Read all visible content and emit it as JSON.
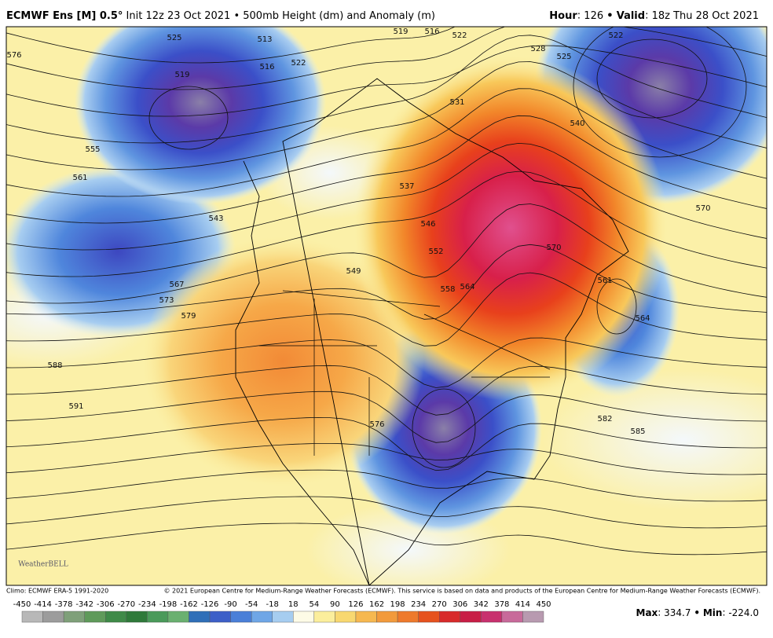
{
  "header": {
    "title": "ECMWF Ens [M] 0.5°",
    "init": "Init 12z 23 Oct 2021",
    "separator": "•",
    "field": "500mb Height (dm) and Anomaly (m)",
    "hour_label": "Hour",
    "hour": "126",
    "valid_label": "Valid",
    "valid": "18z Thu 28 Oct 2021"
  },
  "map": {
    "logo": "WeatherBELL",
    "contour_labels": [
      "525",
      "513",
      "519",
      "516",
      "522",
      "576",
      "555",
      "561",
      "543",
      "549",
      "567",
      "573",
      "579",
      "588",
      "591",
      "576",
      "582",
      "585",
      "570",
      "561",
      "564",
      "558",
      "564",
      "552",
      "546",
      "537",
      "531",
      "528",
      "525",
      "522",
      "540",
      "522",
      "519",
      "516",
      "570"
    ]
  },
  "footer": {
    "climo": "Climo: ECMWF ERA-5 1991-2020",
    "copyright": "© 2021 European Centre for Medium-Range Weather Forecasts (ECMWF). This service is based on data and products of the European Centre for Medium-Range Weather Forecasts (ECMWF).",
    "max_label": "Max",
    "max": "334.7",
    "min_label": "Min",
    "min": "-224.0"
  },
  "colorbar": {
    "ticks": [
      -450,
      -414,
      -378,
      -342,
      -306,
      -270,
      -234,
      -198,
      -162,
      -126,
      -90,
      -54,
      -18,
      18,
      54,
      90,
      126,
      162,
      198,
      234,
      270,
      306,
      342,
      378,
      414,
      450
    ]
  }
}
